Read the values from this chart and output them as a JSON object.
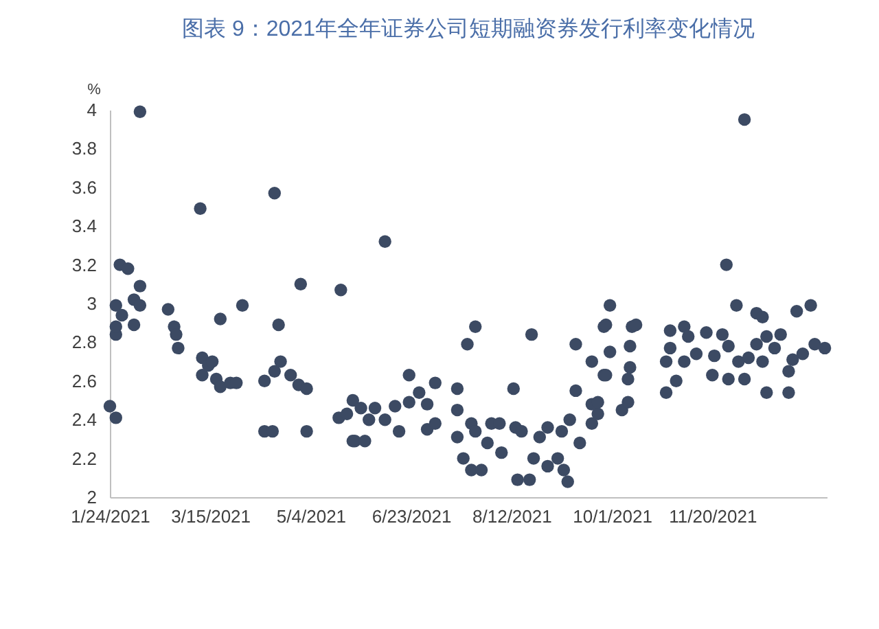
{
  "chart_data": {
    "type": "scatter",
    "title": "图表 9：2021年全年证券公司短期融资券发行利率变化情况",
    "ylabel": "%",
    "x": [
      "2021-01-24",
      "2021-01-27",
      "2021-01-27",
      "2021-01-27",
      "2021-01-27",
      "2021-01-29",
      "2021-01-30",
      "2021-02-02",
      "2021-02-05",
      "2021-02-05",
      "2021-02-08",
      "2021-02-08",
      "2021-02-08",
      "2021-02-22",
      "2021-02-25",
      "2021-02-26",
      "2021-02-27",
      "2021-03-10",
      "2021-03-11",
      "2021-03-11",
      "2021-03-14",
      "2021-03-16",
      "2021-03-18",
      "2021-03-20",
      "2021-03-20",
      "2021-03-25",
      "2021-03-28",
      "2021-03-31",
      "2021-04-11",
      "2021-04-11",
      "2021-04-15",
      "2021-04-16",
      "2021-04-16",
      "2021-04-18",
      "2021-04-19",
      "2021-04-24",
      "2021-04-28",
      "2021-04-29",
      "2021-05-02",
      "2021-05-02",
      "2021-05-18",
      "2021-05-19",
      "2021-05-22",
      "2021-05-25",
      "2021-05-25",
      "2021-05-26",
      "2021-05-29",
      "2021-05-31",
      "2021-06-02",
      "2021-06-05",
      "2021-06-10",
      "2021-06-10",
      "2021-06-15",
      "2021-06-17",
      "2021-06-22",
      "2021-06-22",
      "2021-06-27",
      "2021-07-01",
      "2021-07-01",
      "2021-07-05",
      "2021-07-05",
      "2021-07-16",
      "2021-07-16",
      "2021-07-16",
      "2021-07-19",
      "2021-07-21",
      "2021-07-23",
      "2021-07-23",
      "2021-07-25",
      "2021-07-25",
      "2021-07-28",
      "2021-07-31",
      "2021-08-02",
      "2021-08-06",
      "2021-08-07",
      "2021-08-13",
      "2021-08-14",
      "2021-08-15",
      "2021-08-17",
      "2021-08-21",
      "2021-08-22",
      "2021-08-23",
      "2021-08-26",
      "2021-08-30",
      "2021-08-30",
      "2021-09-04",
      "2021-09-06",
      "2021-09-07",
      "2021-09-09",
      "2021-09-10",
      "2021-09-13",
      "2021-09-13",
      "2021-09-15",
      "2021-09-21",
      "2021-09-21",
      "2021-09-21",
      "2021-09-24",
      "2021-09-24",
      "2021-09-27",
      "2021-09-27",
      "2021-09-28",
      "2021-09-28",
      "2021-09-30",
      "2021-09-30",
      "2021-10-06",
      "2021-10-09",
      "2021-10-09",
      "2021-10-10",
      "2021-10-10",
      "2021-10-11",
      "2021-10-13",
      "2021-10-28",
      "2021-10-28",
      "2021-10-30",
      "2021-10-30",
      "2021-11-02",
      "2021-11-06",
      "2021-11-06",
      "2021-11-08",
      "2021-11-12",
      "2021-11-17",
      "2021-11-20",
      "2021-11-21",
      "2021-11-25",
      "2021-11-27",
      "2021-11-28",
      "2021-11-28",
      "2021-12-02",
      "2021-12-03",
      "2021-12-06",
      "2021-12-06",
      "2021-12-08",
      "2021-12-12",
      "2021-12-12",
      "2021-12-15",
      "2021-12-15",
      "2021-12-17",
      "2021-12-17",
      "2021-12-21",
      "2021-12-24",
      "2021-12-28",
      "2021-12-28",
      "2021-12-30",
      "2022-01-01",
      "2022-01-04",
      "2022-01-08",
      "2022-01-10",
      "2022-01-15"
    ],
    "series": [
      {
        "color": "#3c4a63",
        "values": [
          2.47,
          2.41,
          2.84,
          2.88,
          2.99,
          3.2,
          2.94,
          3.18,
          2.89,
          3.02,
          3.09,
          2.99,
          3.99,
          2.97,
          2.88,
          2.84,
          2.77,
          3.49,
          2.72,
          2.63,
          2.68,
          2.7,
          2.61,
          2.92,
          2.57,
          2.59,
          2.59,
          2.99,
          2.6,
          2.34,
          2.34,
          3.57,
          2.65,
          2.89,
          2.7,
          2.63,
          2.58,
          3.1,
          2.56,
          2.34,
          2.41,
          3.07,
          2.43,
          2.29,
          2.5,
          2.29,
          2.46,
          2.29,
          2.4,
          2.46,
          3.32,
          2.4,
          2.47,
          2.34,
          2.63,
          2.49,
          2.54,
          2.48,
          2.35,
          2.59,
          2.38,
          2.56,
          2.45,
          2.31,
          2.2,
          2.79,
          2.38,
          2.14,
          2.88,
          2.34,
          2.14,
          2.28,
          2.38,
          2.38,
          2.23,
          2.56,
          2.36,
          2.09,
          2.34,
          2.09,
          2.84,
          2.2,
          2.31,
          2.36,
          2.16,
          2.2,
          2.34,
          2.14,
          2.08,
          2.4,
          2.79,
          2.55,
          2.28,
          2.7,
          2.38,
          2.48,
          2.43,
          2.49,
          2.88,
          2.63,
          2.63,
          2.89,
          2.99,
          2.75,
          2.45,
          2.49,
          2.61,
          2.67,
          2.78,
          2.88,
          2.89,
          2.54,
          2.7,
          2.86,
          2.77,
          2.6,
          2.88,
          2.7,
          2.83,
          2.74,
          2.85,
          2.63,
          2.73,
          2.84,
          3.2,
          2.78,
          2.61,
          2.99,
          2.7,
          3.95,
          2.61,
          2.72,
          2.95,
          2.79,
          2.93,
          2.7,
          2.54,
          2.83,
          2.77,
          2.84,
          2.54,
          2.65,
          2.71,
          2.96,
          2.74,
          2.99,
          2.79,
          2.77
        ]
      }
    ],
    "xlim": [
      "2021-01-24",
      "2022-01-16"
    ],
    "xticks": [
      {
        "value": "2021-01-24",
        "label": "1/24/2021"
      },
      {
        "value": "2021-03-15",
        "label": "3/15/2021"
      },
      {
        "value": "2021-05-04",
        "label": "5/4/2021"
      },
      {
        "value": "2021-06-23",
        "label": "6/23/2021"
      },
      {
        "value": "2021-08-12",
        "label": "8/12/2021"
      },
      {
        "value": "2021-10-01",
        "label": "10/1/2021"
      },
      {
        "value": "2021-11-20",
        "label": "11/20/2021"
      }
    ],
    "ylim": [
      2,
      4
    ],
    "yticks": [
      2,
      2.2,
      2.4,
      2.6,
      2.8,
      3,
      3.2,
      3.4,
      3.6,
      3.8,
      4
    ],
    "marker": "circle",
    "grid": false,
    "legend": false
  }
}
